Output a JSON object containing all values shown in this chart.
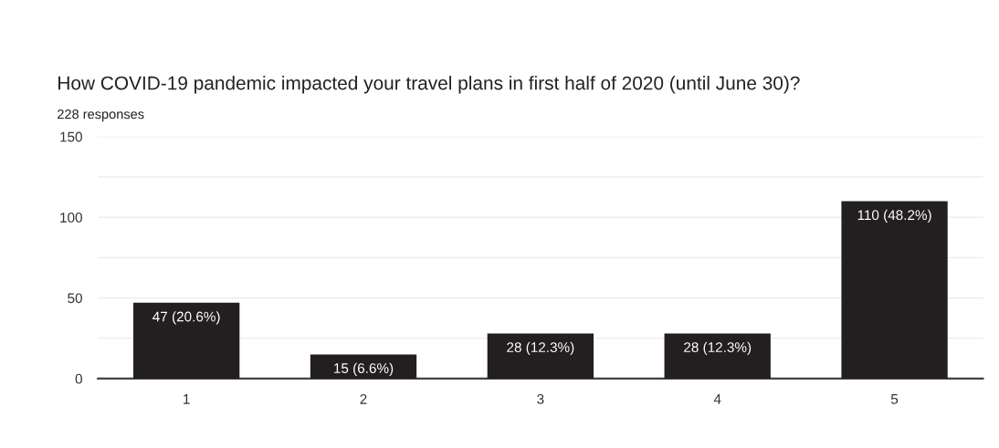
{
  "chart_data": {
    "type": "bar",
    "title": "How COVID-19 pandemic impacted your travel plans in first half of 2020 (until June 30)?",
    "subtitle": "228 responses",
    "categories": [
      "1",
      "2",
      "3",
      "4",
      "5"
    ],
    "values": [
      47,
      15,
      28,
      28,
      110
    ],
    "value_labels": [
      "47 (20.6%)",
      "15 (6.6%)",
      "28 (12.3%)",
      "28 (12.3%)",
      "110 (48.2%)"
    ],
    "color": "#231f20",
    "ylim": [
      0,
      150
    ],
    "yticks": [
      0,
      {
        "value": 25,
        "label": null
      },
      50,
      {
        "value": 75,
        "label": null
      },
      100,
      {
        "value": 125,
        "label": null
      },
      150
    ],
    "grid": "y"
  }
}
